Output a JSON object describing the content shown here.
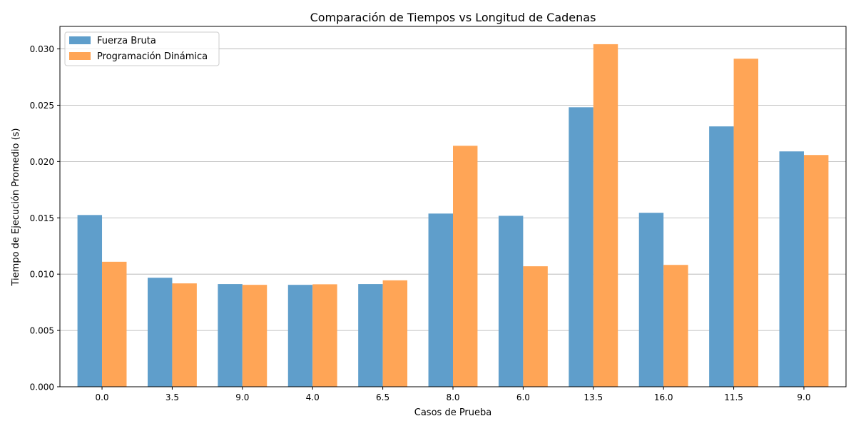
{
  "chart_data": {
    "type": "bar",
    "title": "Comparación de Tiempos vs Longitud de Cadenas",
    "xlabel": "Casos de Prueba",
    "ylabel": "Tiempo de Ejecución Promedio (s)",
    "categories": [
      "0.0",
      "3.5",
      "9.0",
      "4.0",
      "6.5",
      "8.0",
      "6.0",
      "13.5",
      "16.0",
      "11.5",
      "9.0"
    ],
    "series": [
      {
        "name": "Fuerza Bruta",
        "color": "#5f9ecb",
        "values": [
          0.01525,
          0.00968,
          0.00912,
          0.00905,
          0.00912,
          0.01538,
          0.01518,
          0.02482,
          0.01545,
          0.02312,
          0.0209
        ]
      },
      {
        "name": "Programación Dinámica",
        "color": "#ffa556",
        "values": [
          0.0111,
          0.00918,
          0.00905,
          0.0091,
          0.00945,
          0.0214,
          0.0107,
          0.03042,
          0.01082,
          0.02913,
          0.02058
        ]
      }
    ],
    "ylim": [
      0,
      0.032
    ],
    "yticks": [
      "0.000",
      "0.005",
      "0.010",
      "0.015",
      "0.020",
      "0.025",
      "0.030"
    ],
    "ytick_values": [
      0,
      0.005,
      0.01,
      0.015,
      0.02,
      0.025,
      0.03
    ],
    "grid": "y",
    "grid_color": "#b0b0b0",
    "legend_position": "top-left"
  }
}
